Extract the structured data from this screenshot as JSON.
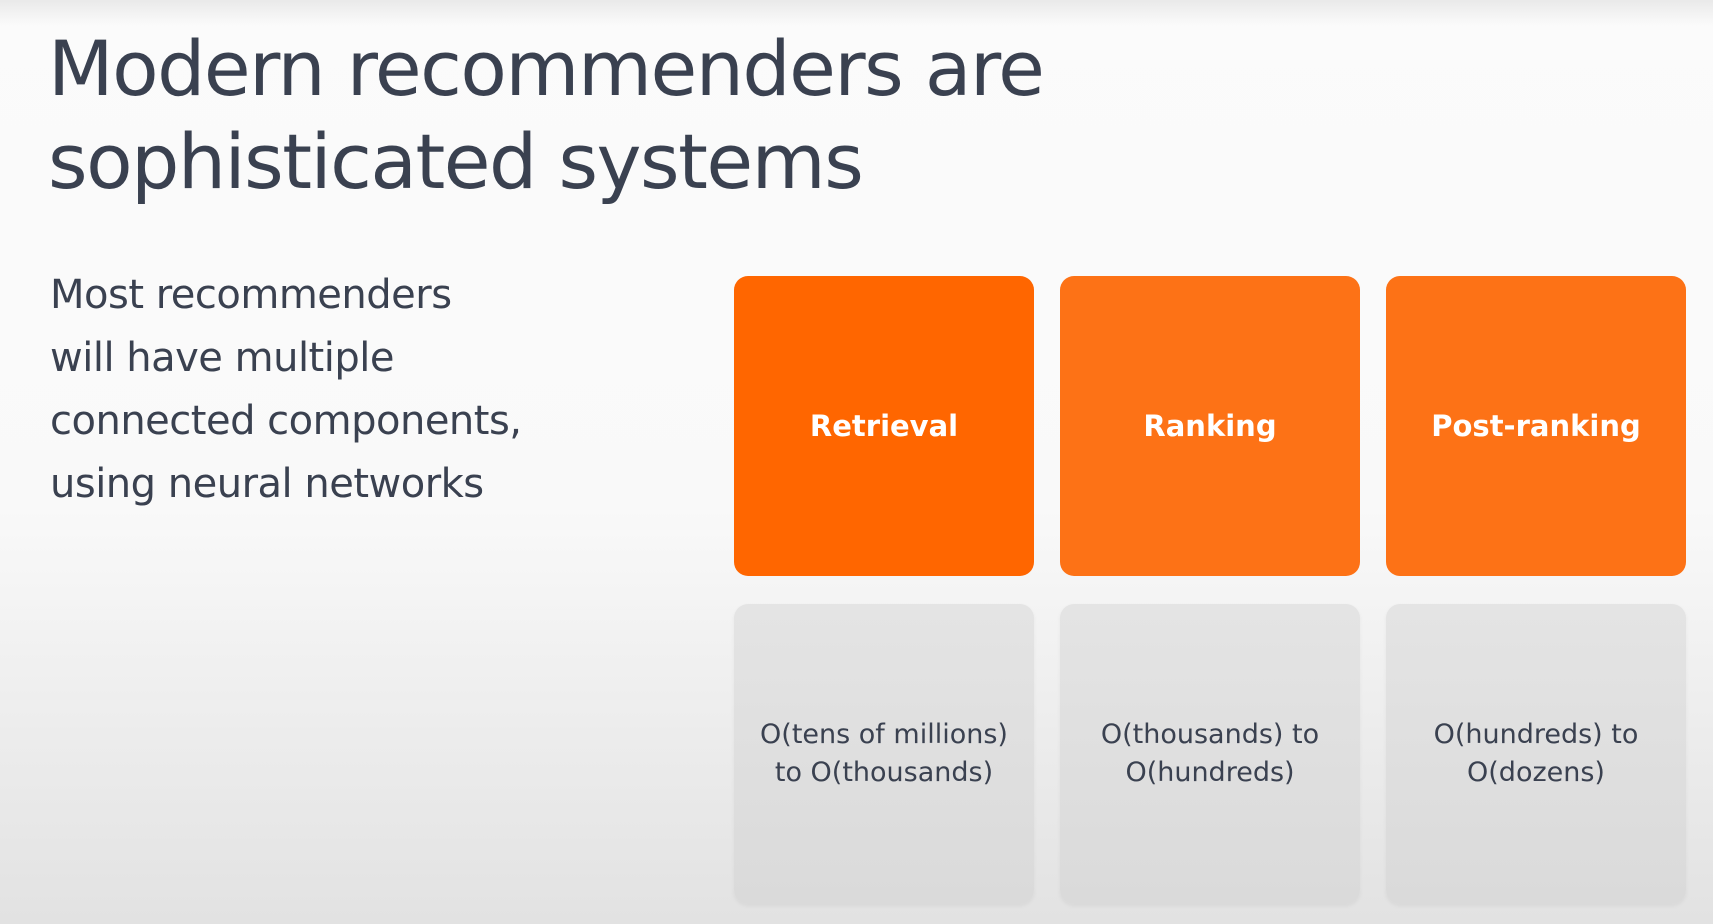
{
  "title": {
    "line1": "Modern recommenders are",
    "line2": "sophisticated systems"
  },
  "body": {
    "lines": [
      "Most recommenders",
      "will have multiple",
      "connected components,",
      "using neural networks"
    ]
  },
  "stages": [
    {
      "label": "Retrieval",
      "scale_line1": "O(tens of millions)",
      "scale_line2": "to O(thousands)",
      "color": "#ff6600"
    },
    {
      "label": "Ranking",
      "scale_line1": "O(thousands) to",
      "scale_line2": "O(hundreds)",
      "color": "#fd7216"
    },
    {
      "label": "Post-ranking",
      "scale_line1": "O(hundreds) to",
      "scale_line2": "O(dozens)",
      "color": "#fd7216"
    }
  ]
}
